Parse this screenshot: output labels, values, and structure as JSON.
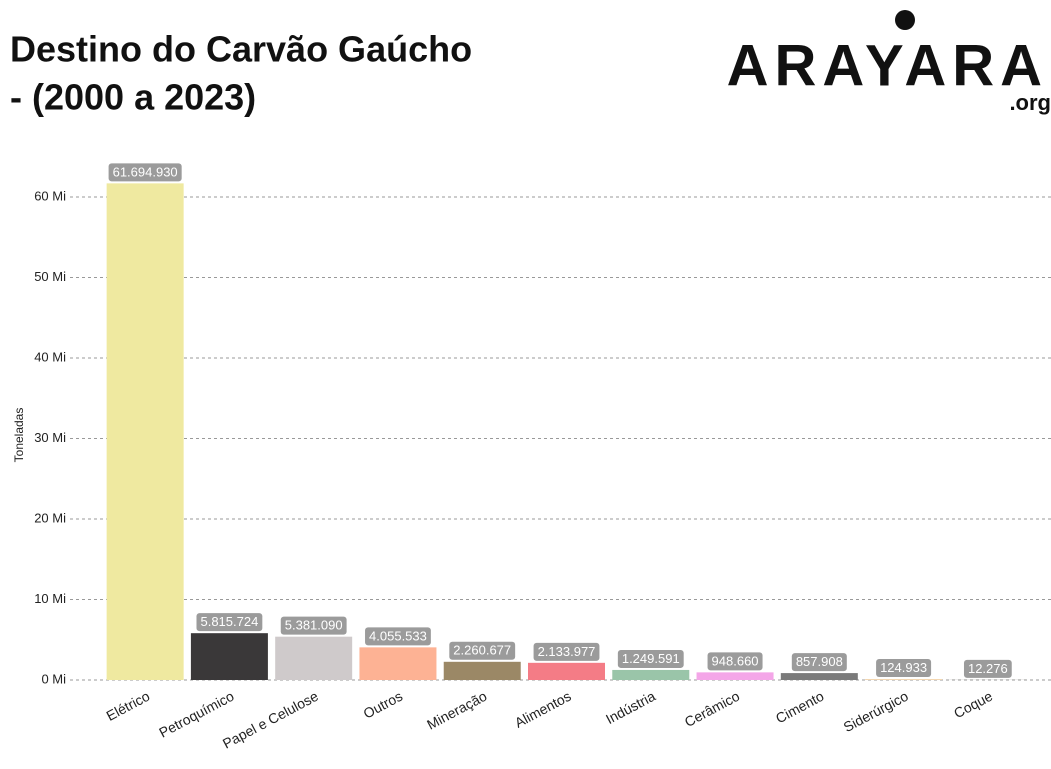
{
  "chart_data": {
    "type": "bar",
    "title": [
      "Destino do Carvão Gaúcho",
      "- (2000 a 2023)"
    ],
    "logo": {
      "text": "ARAYARA",
      "domain": ".org"
    },
    "ylabel": "Toneladas",
    "categories": [
      "Elétrico",
      "Petroquímico",
      "Papel e Celulose",
      "Outros",
      "Mineração",
      "Alimentos",
      "Indústria",
      "Cerâmico",
      "Cimento",
      "Siderúrgico",
      "Coque"
    ],
    "values": [
      61694930,
      5815724,
      5381090,
      4055533,
      2260677,
      2133977,
      1249591,
      948660,
      857908,
      124933,
      12276
    ],
    "value_labels": [
      "61.694.930",
      "5.815.724",
      "5.381.090",
      "4.055.533",
      "2.260.677",
      "2.133.977",
      "1.249.591",
      "948.660",
      "857.908",
      "124.933",
      "12.276"
    ],
    "colors": [
      "#efe9a0",
      "#3a3839",
      "#cfcacb",
      "#fdb294",
      "#9b8866",
      "#f47c86",
      "#9ac5a9",
      "#f4a6e8",
      "#7a7a7a",
      "#f3d6b0",
      "#5e5a4e"
    ],
    "ylim": [
      0,
      65000000
    ],
    "yticks": [
      {
        "value": 0,
        "label": "0 Mi"
      },
      {
        "value": 10000000,
        "label": "10 Mi"
      },
      {
        "value": 20000000,
        "label": "20 Mi"
      },
      {
        "value": 30000000,
        "label": "30 Mi"
      },
      {
        "value": 40000000,
        "label": "40 Mi"
      },
      {
        "value": 50000000,
        "label": "50 Mi"
      },
      {
        "value": 60000000,
        "label": "60 Mi"
      }
    ],
    "grid": true
  }
}
